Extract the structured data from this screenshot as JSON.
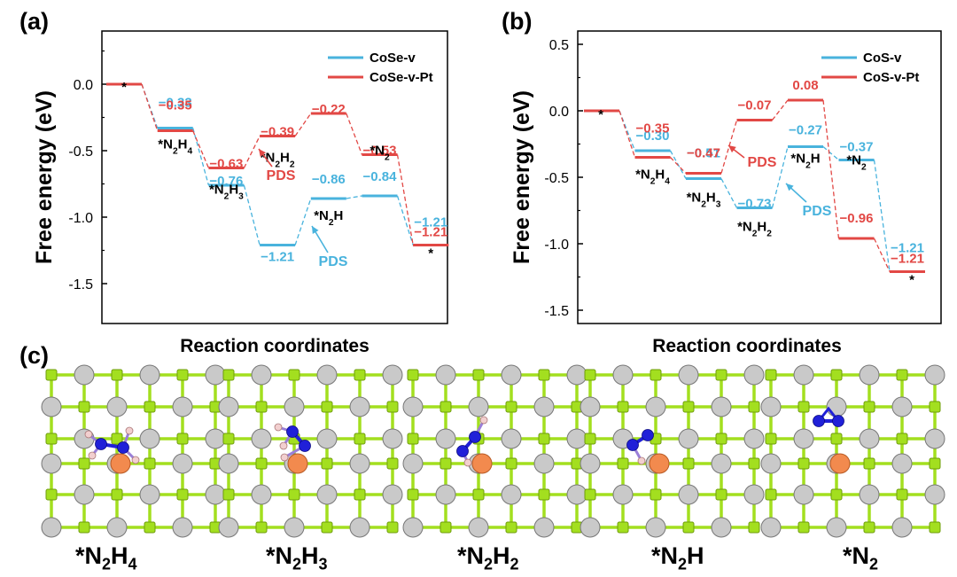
{
  "colors": {
    "blue": "#49b3dd",
    "red": "#e24845",
    "co": "#c9c9c9",
    "se": "#a3df1f",
    "n": "#2020d8",
    "h": "#f2cfcf",
    "pt": "#f28a4e"
  },
  "chart_data": [
    {
      "type": "line",
      "panel_label": "(a)",
      "ylabel": "Free energy (eV)",
      "xlabel": "Reaction coordinates",
      "ylim": [
        -1.8,
        0.4
      ],
      "yticks": [
        "0.0",
        "-0.5",
        "-1.0",
        "-1.5"
      ],
      "legend": [
        "CoSe-v",
        "CoSe-v-Pt"
      ],
      "series": [
        {
          "name": "CoSe-v",
          "values": [
            0.0,
            -0.33,
            -0.76,
            -1.21,
            -0.86,
            -0.84,
            -1.21
          ]
        },
        {
          "name": "CoSe-v-Pt",
          "values": [
            0.0,
            -0.35,
            -0.63,
            -0.39,
            -0.22,
            -0.53,
            -1.21
          ]
        }
      ],
      "value_labels": {
        "CoSe-v": [
          "",
          "−0.33",
          "−0.76",
          "−1.21",
          "−0.86",
          "−0.84",
          "−1.21"
        ],
        "CoSe-v-Pt": [
          "",
          "−0.35",
          "−0.63",
          "−0.39",
          "−0.22",
          "−0.53",
          "−1.21"
        ]
      },
      "state_labels": [
        "*",
        "*N2H4",
        "*N2H3",
        "*N2H2",
        "*N2H",
        "*N2",
        "*"
      ],
      "annotations": [
        {
          "text": "PDS",
          "series": "CoSe-v-Pt",
          "step": 3
        },
        {
          "text": "PDS",
          "series": "CoSe-v",
          "step": 4
        }
      ]
    },
    {
      "type": "line",
      "panel_label": "(b)",
      "ylabel": "Free energy (eV)",
      "xlabel": "Reaction coordinates",
      "ylim": [
        -1.6,
        0.6
      ],
      "yticks": [
        "0.5",
        "0.0",
        "-0.5",
        "-1.0",
        "-1.5"
      ],
      "legend": [
        "CoS-v",
        "CoS-v-Pt"
      ],
      "series": [
        {
          "name": "CoS-v",
          "values": [
            0.0,
            -0.3,
            -0.51,
            -0.73,
            -0.27,
            -0.37,
            -1.21
          ]
        },
        {
          "name": "CoS-v-Pt",
          "values": [
            0.0,
            -0.35,
            -0.47,
            -0.07,
            0.08,
            -0.96,
            -1.21
          ]
        }
      ],
      "value_labels": {
        "CoS-v": [
          "",
          "−0.30",
          "−0.51",
          "−0.73",
          "−0.27",
          "−0.37",
          "−1.21"
        ],
        "CoS-v-Pt": [
          "",
          "−0.35",
          "−0.47",
          "−0.07",
          "0.08",
          "−0.96",
          "−1.21"
        ]
      },
      "state_labels": [
        "*",
        "*N2H4",
        "*N2H3",
        "*N2H2",
        "*N2H",
        "*N2",
        "*"
      ],
      "annotations": [
        {
          "text": "PDS",
          "series": "CoS-v-Pt",
          "step": 2
        },
        {
          "text": "PDS",
          "series": "CoS-v",
          "step": 3
        }
      ]
    }
  ],
  "panel_c": {
    "label": "(c)",
    "structures": [
      {
        "name": "N2H4",
        "caption": "*N2H4"
      },
      {
        "name": "N2H3",
        "caption": "*N2H3"
      },
      {
        "name": "N2H2",
        "caption": "*N2H2"
      },
      {
        "name": "N2H",
        "caption": "*N2H"
      },
      {
        "name": "N2",
        "caption": "*N2"
      }
    ]
  }
}
